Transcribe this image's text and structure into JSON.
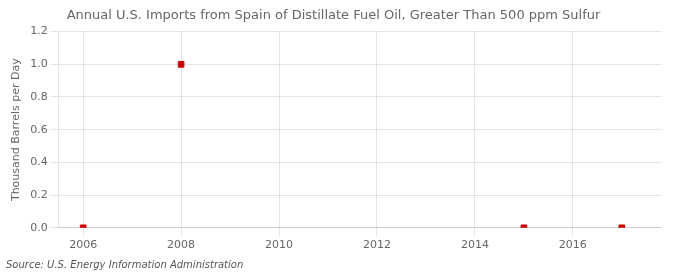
{
  "chart_data": {
    "type": "scatter",
    "title": "Annual U.S. Imports from Spain of Distillate Fuel Oil, Greater Than 500 ppm Sulfur",
    "ylabel": "Thousand Barrels per Day",
    "source": "Source: U.S. Energy Information Administration",
    "x": [
      2006,
      2008,
      2015,
      2017
    ],
    "values": [
      0.0,
      1.0,
      0.0,
      0.0
    ],
    "color": "#CC0000",
    "marker": "square",
    "xlim": [
      2005.5,
      2017.8
    ],
    "ylim": [
      0.0,
      1.2
    ],
    "xticks": [
      2006,
      2008,
      2010,
      2012,
      2014,
      2016
    ],
    "yticks": [
      {
        "value": 0.0,
        "label": "0.0"
      },
      0.2,
      0.4,
      0.6,
      0.8,
      {
        "value": 1.0,
        "label": "1.0"
      },
      1.2
    ],
    "grid": true
  }
}
